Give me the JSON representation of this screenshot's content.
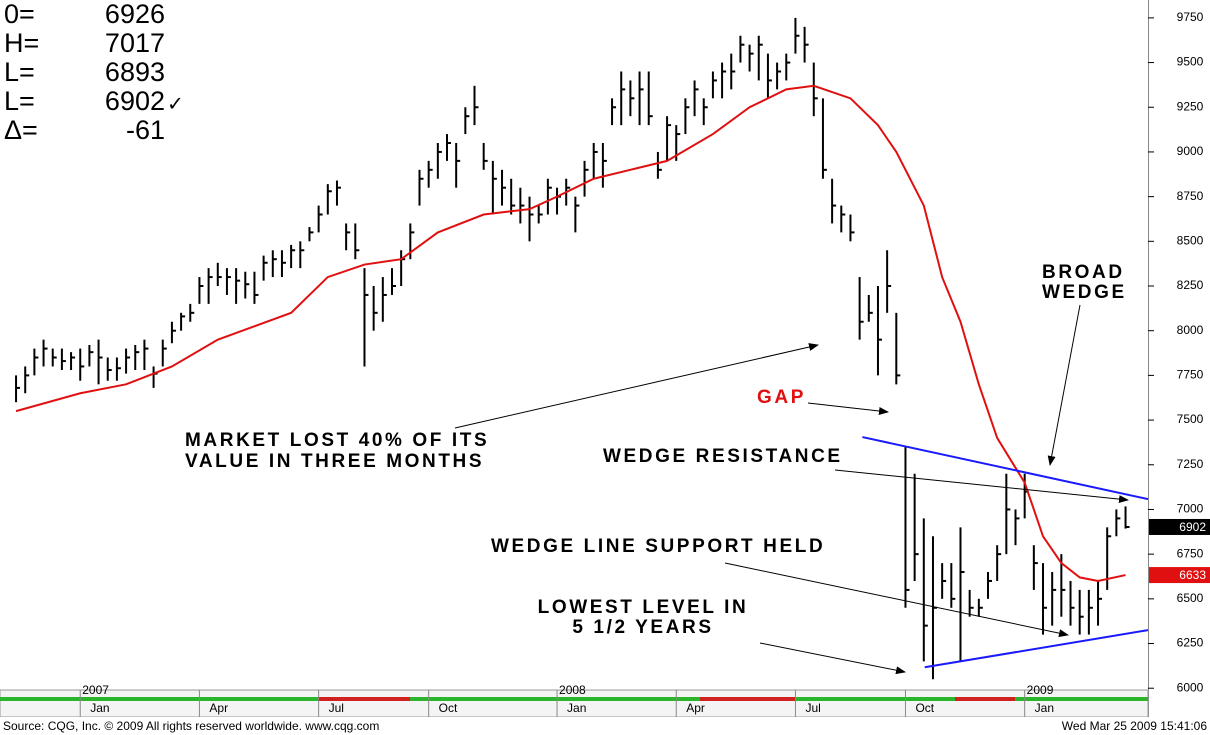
{
  "chart_data": {
    "type": "ohlc",
    "header": [
      {
        "label": "0=",
        "value": 6926
      },
      {
        "label": "H=",
        "value": 7017
      },
      {
        "label": "L=",
        "value": 6893
      },
      {
        "label": "L=",
        "value": 6902,
        "mark": "✓"
      },
      {
        "label": "Δ=",
        "value": -61
      }
    ],
    "xlim": [
      -1.75,
      123.45
    ],
    "ylim": [
      5990,
      9850
    ],
    "yticks": [
      6000,
      6250,
      6500,
      6750,
      7000,
      7250,
      7500,
      7750,
      8000,
      8250,
      8500,
      8750,
      9000,
      9250,
      9500,
      9750
    ],
    "xticks": [
      {
        "value": 7,
        "label": "Jan"
      },
      {
        "value": 20,
        "label": "Apr"
      },
      {
        "value": 33,
        "label": "Jul"
      },
      {
        "value": 45,
        "label": "Oct"
      },
      {
        "value": 59,
        "label": "Jan"
      },
      {
        "value": 72,
        "label": "Apr"
      },
      {
        "value": 85,
        "label": "Jul"
      },
      {
        "value": 97,
        "label": "Oct"
      },
      {
        "value": 110,
        "label": "Jan"
      }
    ],
    "year_ticks": [
      {
        "value": 7,
        "label": "2007"
      },
      {
        "value": 59,
        "label": "2008"
      },
      {
        "value": 110,
        "label": "2009"
      }
    ],
    "color": "#000000",
    "high": [
      7750,
      7800,
      7900,
      7950,
      7900,
      7900,
      7880,
      7900,
      7920,
      7950,
      7850,
      7850,
      7900,
      7920,
      7950,
      7800,
      7950,
      8050,
      8100,
      8150,
      8300,
      8350,
      8380,
      8350,
      8350,
      8330,
      8330,
      8420,
      8450,
      8450,
      8480,
      8500,
      8580,
      8700,
      8820,
      8840,
      8600,
      8600,
      8350,
      8250,
      8300,
      8350,
      8450,
      8600,
      8900,
      8950,
      9050,
      9100,
      9050,
      9250,
      9370,
      9050,
      8950,
      8900,
      8850,
      8800,
      8750,
      8700,
      8850,
      8800,
      8850,
      8750,
      8950,
      9050,
      9050,
      9300,
      9450,
      9400,
      9450,
      9450,
      9000,
      9200,
      9150,
      9300,
      9400,
      9300,
      9450,
      9500,
      9550,
      9650,
      9600,
      9650,
      9550,
      9500,
      9550,
      9750,
      9700,
      9500,
      9300,
      8850,
      8700,
      8650,
      8300,
      8200,
      8250,
      8450,
      8100,
      7350,
      7200,
      6950,
      6850,
      6700,
      6700,
      6900,
      6550,
      6500,
      6650,
      6800,
      7200,
      7000,
      7200,
      6800,
      6700,
      6650,
      6750,
      6600,
      6550,
      6550,
      6600,
      6900,
      7000,
      7017
    ],
    "low": [
      7600,
      7650,
      7750,
      7800,
      7800,
      7780,
      7780,
      7720,
      7800,
      7700,
      7720,
      7720,
      7760,
      7780,
      7780,
      7680,
      7800,
      7930,
      8000,
      8050,
      8150,
      8150,
      8250,
      8200,
      8150,
      8180,
      8150,
      8280,
      8300,
      8300,
      8350,
      8350,
      8500,
      8550,
      8650,
      8700,
      8450,
      8400,
      7800,
      8000,
      8050,
      8200,
      8250,
      8400,
      8700,
      8800,
      8850,
      8950,
      8800,
      9100,
      9150,
      8900,
      8650,
      8700,
      8650,
      8600,
      8500,
      8600,
      8650,
      8650,
      8700,
      8550,
      8750,
      8850,
      8800,
      9150,
      9150,
      9200,
      9150,
      9150,
      8850,
      8950,
      8950,
      9100,
      9200,
      9150,
      9300,
      9300,
      9350,
      9500,
      9450,
      9400,
      9300,
      9350,
      9400,
      9550,
      9500,
      9200,
      8850,
      8600,
      8550,
      8500,
      7950,
      8050,
      7750,
      8100,
      7700,
      6450,
      6600,
      6150,
      6050,
      6500,
      6450,
      6150,
      6400,
      6400,
      6500,
      6600,
      6750,
      6800,
      6950,
      6550,
      6300,
      6350,
      6400,
      6350,
      6300,
      6300,
      6350,
      6550,
      6850,
      6893
    ],
    "close": [
      7680,
      7750,
      7850,
      7900,
      7850,
      7830,
      7850,
      7800,
      7880,
      7850,
      7780,
      7790,
      7850,
      7880,
      7900,
      7760,
      7900,
      8000,
      8080,
      8100,
      8250,
      8300,
      8300,
      8300,
      8280,
      8260,
      8200,
      8380,
      8400,
      8380,
      8450,
      8450,
      8550,
      8650,
      8780,
      8800,
      8550,
      8450,
      8200,
      8100,
      8200,
      8250,
      8400,
      8550,
      8850,
      8900,
      9000,
      9050,
      8950,
      9200,
      9250,
      8950,
      8850,
      8800,
      8700,
      8700,
      8650,
      8650,
      8800,
      8750,
      8800,
      8700,
      8900,
      9000,
      8950,
      9250,
      9350,
      9300,
      9350,
      9200,
      8900,
      9150,
      9100,
      9250,
      9350,
      9250,
      9400,
      9450,
      9450,
      9600,
      9550,
      9600,
      9400,
      9450,
      9500,
      9650,
      9600,
      9300,
      8900,
      8700,
      8650,
      8550,
      8050,
      8100,
      7950,
      8250,
      7750,
      6550,
      6750,
      6350,
      6450,
      6600,
      6500,
      6650,
      6450,
      6450,
      6600,
      6750,
      7000,
      6950,
      7100,
      6700,
      6450,
      6550,
      6550,
      6450,
      6400,
      6450,
      6500,
      6850,
      6950,
      6902
    ],
    "moving_average": {
      "color": "#e01010",
      "x": [
        0,
        7,
        12,
        17,
        22,
        30,
        34,
        38,
        42,
        46,
        51,
        56,
        59,
        63,
        67,
        71,
        76,
        80,
        84,
        87,
        91,
        94,
        96,
        99,
        101,
        103,
        105,
        107,
        110,
        112,
        114,
        116,
        118,
        121
      ],
      "values": [
        7550,
        7650,
        7700,
        7800,
        7950,
        8100,
        8300,
        8370,
        8400,
        8550,
        8650,
        8680,
        8750,
        8850,
        8900,
        8950,
        9100,
        9250,
        9350,
        9370,
        9300,
        9150,
        9000,
        8700,
        8300,
        8050,
        7700,
        7400,
        7150,
        6850,
        6700,
        6620,
        6600,
        6633
      ]
    },
    "trendlines": [
      {
        "color": "#1a1aff",
        "x": [
          92.3,
          123.45
        ],
        "values": [
          7405,
          7058
        ]
      },
      {
        "color": "#1a1aff",
        "x": [
          99.1,
          123.45
        ],
        "values": [
          6117,
          6325
        ]
      }
    ],
    "annotations": [
      {
        "lines": [
          "MARKET LOST 40% OF ITS",
          "VALUE IN THREE MONTHS"
        ]
      },
      {
        "lines": [
          "GAP"
        ]
      },
      {
        "lines": [
          "WEDGE RESISTANCE"
        ]
      },
      {
        "lines": [
          "BROAD",
          "WEDGE"
        ]
      },
      {
        "lines": [
          "WEDGE LINE SUPPORT HELD"
        ]
      },
      {
        "lines": [
          "LOWEST LEVEL IN",
          "5 1/2 YEARS"
        ]
      }
    ],
    "footer": {
      "source": "Source: CQG, Inc. © 2009 All rights reserved worldwide. www.cqg.com",
      "timestamp": "Wed Mar 25 2009 15:41:06"
    }
  }
}
